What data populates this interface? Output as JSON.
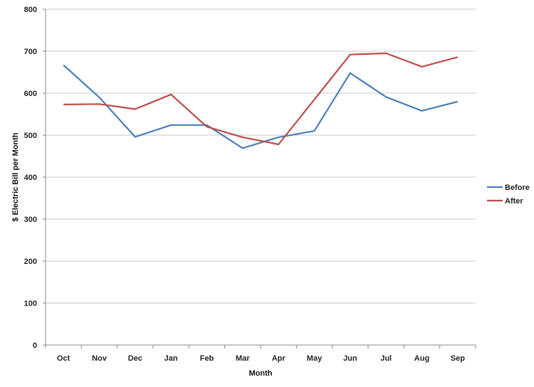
{
  "chart_data": {
    "type": "line",
    "title": "",
    "xlabel": "Month",
    "ylabel": "$ Electric Bill per Month",
    "categories": [
      "Oct",
      "Nov",
      "Dec",
      "Jan",
      "Feb",
      "Mar",
      "Apr",
      "May",
      "Jun",
      "Jul",
      "Aug",
      "Sep"
    ],
    "ylim": [
      0,
      800
    ],
    "yticks": [
      0,
      100,
      200,
      300,
      400,
      500,
      600,
      700,
      800
    ],
    "grid": "horizontal",
    "legend_position": "right",
    "series": [
      {
        "name": "Before",
        "color": "#4a7ebb",
        "values": [
          667,
          590,
          496,
          524,
          524,
          469,
          495,
          510,
          648,
          591,
          558,
          580
        ]
      },
      {
        "name": "After",
        "color": "#be4b48",
        "values": [
          573,
          574,
          562,
          597,
          520,
          495,
          478,
          585,
          692,
          695,
          663,
          686
        ]
      }
    ]
  }
}
